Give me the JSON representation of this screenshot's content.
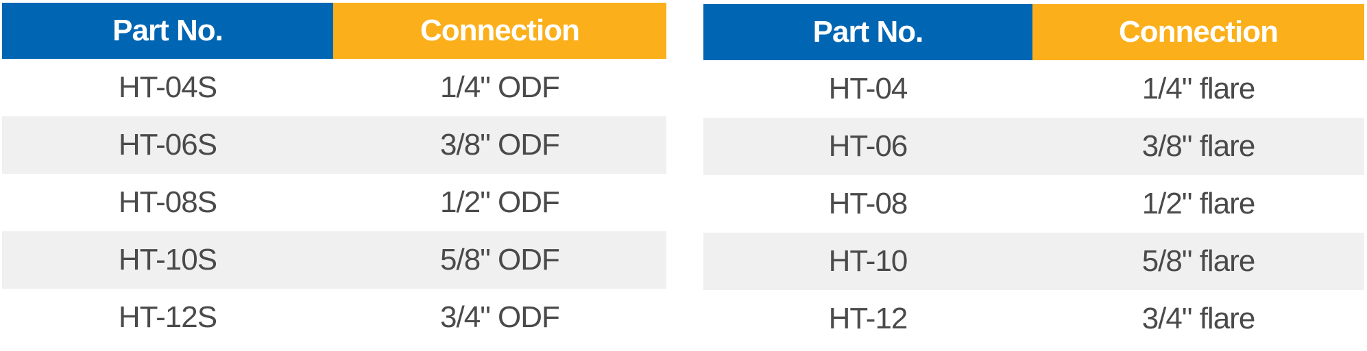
{
  "tables": [
    {
      "header": [
        "Part No.",
        "Connection"
      ],
      "rows": [
        [
          "HT-04S",
          "1/4\" ODF"
        ],
        [
          "HT-06S",
          "3/8\" ODF"
        ],
        [
          "HT-08S",
          "1/2\" ODF"
        ],
        [
          "HT-10S",
          "5/8\" ODF"
        ],
        [
          "HT-12S",
          "3/4\" ODF"
        ]
      ]
    },
    {
      "header": [
        "Part No.",
        "Connection"
      ],
      "rows": [
        [
          "HT-04",
          "1/4\" flare"
        ],
        [
          "HT-06",
          "3/8\" flare"
        ],
        [
          "HT-08",
          "1/2\" flare"
        ],
        [
          "HT-10",
          "5/8\" flare"
        ],
        [
          "HT-12",
          "3/4\" flare"
        ]
      ]
    }
  ]
}
